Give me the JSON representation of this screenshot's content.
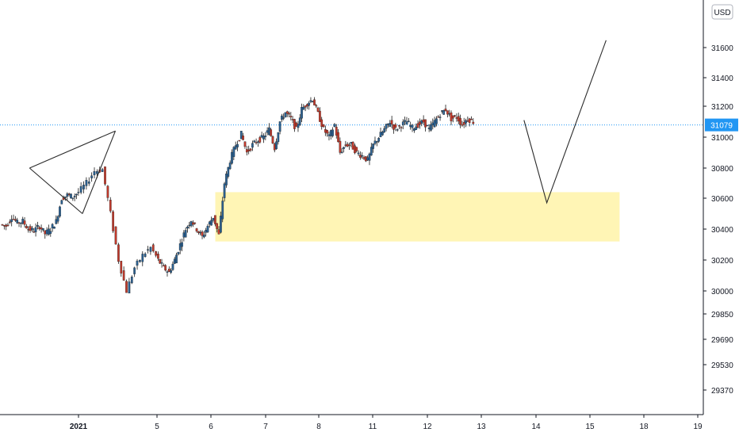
{
  "currency_badge": "USD",
  "colors": {
    "up_candle": "#2a5f8f",
    "down_candle": "#c0392b",
    "current_price_line": "#2196f3",
    "current_price_badge": "#2196f3",
    "zone_fill": "#fff3a8",
    "drawing_line": "#2b2b2b",
    "axis_line": "#131722"
  },
  "chart_data": {
    "type": "candlestick",
    "title": "",
    "xlabel": "",
    "ylabel": "",
    "ylim": [
      29200,
      31900
    ],
    "y_ticks": [
      31600,
      31400,
      31200,
      31000,
      30800,
      30600,
      30400,
      30200,
      30000,
      29850,
      29690,
      29530,
      29370
    ],
    "x_tick_labels": [
      {
        "label": "2021",
        "x": 0
      },
      {
        "label": "5",
        "x": 1
      },
      {
        "label": "6",
        "x": 2
      },
      {
        "label": "7",
        "x": 3
      },
      {
        "label": "8",
        "x": 4
      },
      {
        "label": "11",
        "x": 5
      },
      {
        "label": "12",
        "x": 6
      },
      {
        "label": "13",
        "x": 7
      },
      {
        "label": "14",
        "x": 8
      },
      {
        "label": "15",
        "x": 9
      },
      {
        "label": "18",
        "x": 10
      },
      {
        "label": "19",
        "x": 11
      }
    ],
    "current_price": 31079,
    "price_series_start": -1.4,
    "price_series_step": 0.023,
    "price_path": [
      30430,
      30420,
      30480,
      30440,
      30450,
      30400,
      30390,
      30420,
      30370,
      30400,
      30450,
      30600,
      30620,
      30610,
      30640,
      30700,
      30780,
      30790,
      30500,
      30200,
      30000,
      30150,
      30230,
      30280,
      30200,
      30150,
      30120,
      30200,
      30300,
      30400,
      30460,
      30400,
      30350,
      30420,
      30480,
      30360,
      30700,
      30850,
      30950,
      31020,
      30900,
      30950,
      30980,
      31000,
      31050,
      30930,
      31100,
      31160,
      31120,
      31050,
      31180,
      31220,
      31250,
      31150,
      31050,
      31000,
      31080,
      30900,
      30950,
      30950,
      30900,
      30880,
      30850,
      30950,
      31000,
      31050,
      31100,
      31050,
      31080,
      31100,
      31060,
      31080,
      31100,
      31050,
      31100,
      31150,
      31180,
      31120,
      31130,
      31080,
      31120,
      31100
    ],
    "demand_zone": {
      "x_start": 2.08,
      "x_end": 9.55,
      "y_low": 30320,
      "y_high": 30640
    },
    "pattern_lines": [
      {
        "from": {
          "x": -0.9,
          "y": 30800
        },
        "to": {
          "x": 0.47,
          "y": 31040
        }
      },
      {
        "from": {
          "x": -0.9,
          "y": 30800
        },
        "to": {
          "x": 0.05,
          "y": 30500
        }
      },
      {
        "from": {
          "x": 0.05,
          "y": 30500
        },
        "to": {
          "x": 0.47,
          "y": 31040
        }
      }
    ],
    "projection_line": [
      {
        "x": 7.78,
        "y": 31110
      },
      {
        "x": 8.2,
        "y": 30570
      },
      {
        "x": 9.3,
        "y": 31650
      }
    ]
  }
}
